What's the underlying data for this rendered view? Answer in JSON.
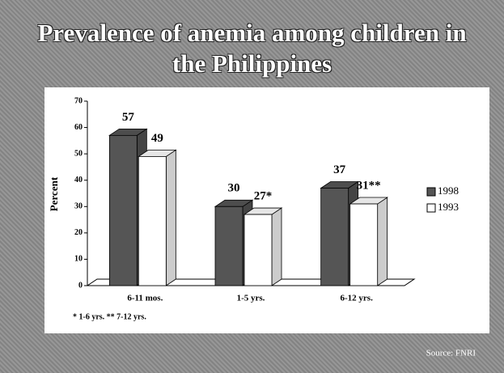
{
  "chart_data": {
    "type": "bar",
    "title": "Prevalence of anemia among children in the Philippines",
    "y_label": "Percent",
    "categories": [
      "6-11 mos.",
      "1-5 yrs.",
      "6-12 yrs."
    ],
    "series": [
      {
        "name": "1998",
        "color": "#555555",
        "values": [
          57,
          30,
          37
        ],
        "value_labels": [
          "57",
          "30",
          "37"
        ]
      },
      {
        "name": "1993",
        "color": "#ffffff",
        "values": [
          49,
          27,
          31
        ],
        "value_labels": [
          "49",
          "27*",
          "31**"
        ]
      }
    ],
    "ylim": [
      0,
      70
    ],
    "yticks": [
      0,
      10,
      20,
      30,
      40,
      50,
      60,
      70
    ],
    "footnote": "* 1-6 yrs.   ** 7-12 yrs.",
    "source": "Source: FNRI"
  }
}
